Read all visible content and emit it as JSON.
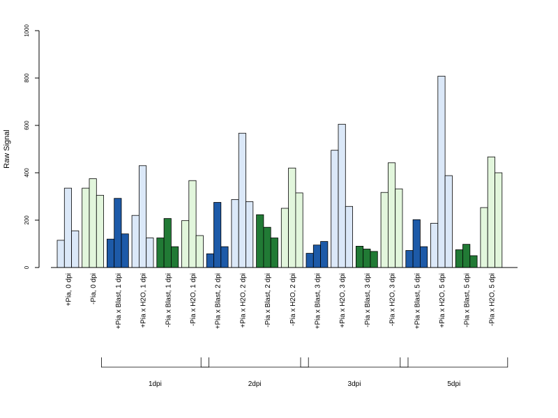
{
  "chart_data": {
    "type": "bar",
    "ylabel": "Raw Signal",
    "ylim": [
      0,
      1000
    ],
    "yticks": [
      0,
      200,
      400,
      600,
      800,
      1000
    ],
    "grid": false,
    "legend": "none",
    "bars_per_group": 3,
    "palette": {
      "light_blue": "#dbe8f8",
      "dark_blue": "#1d5aa8",
      "light_green": "#e2f6dc",
      "dark_green": "#217a35"
    },
    "categories": [
      "+Pia, 0 dpi",
      "-Pia, 0 dpi",
      "+Pia x Blast, 1 dpi",
      "+Pia x H2O, 1 dpi",
      "-Pia x Blast, 1 dpi",
      "-Pia x H2O, 1 dpi",
      "+Pia x Blast, 2 dpi",
      "+Pia x H2O, 2 dpi",
      "-Pia x Blast, 2 dpi",
      "-Pia x H2O, 2 dpi",
      "+Pia x Blast, 3 dpi",
      "+Pia x H2O, 3 dpi",
      "-Pia x Blast, 3 dpi",
      "-Pia x H2O, 3 dpi",
      "+Pia x Blast, 5 dpi",
      "+Pia x H2O, 5 dpi",
      "-Pia x Blast, 5 dpi",
      "-Pia x H2O, 5 dpi"
    ],
    "colors": [
      "light_blue",
      "light_green",
      "dark_blue",
      "light_blue",
      "dark_green",
      "light_green",
      "dark_blue",
      "light_blue",
      "dark_green",
      "light_green",
      "dark_blue",
      "light_blue",
      "dark_green",
      "light_green",
      "dark_blue",
      "light_blue",
      "dark_green",
      "light_green"
    ],
    "values": [
      [
        115,
        335,
        155
      ],
      [
        335,
        375,
        305
      ],
      [
        120,
        292,
        142
      ],
      [
        220,
        430,
        125
      ],
      [
        125,
        207,
        88
      ],
      [
        198,
        367,
        135
      ],
      [
        58,
        275,
        88
      ],
      [
        287,
        567,
        278
      ],
      [
        223,
        170,
        125
      ],
      [
        250,
        420,
        315
      ],
      [
        60,
        95,
        110
      ],
      [
        495,
        605,
        258
      ],
      [
        90,
        78,
        68
      ],
      [
        317,
        442,
        332
      ],
      [
        72,
        202,
        88
      ],
      [
        187,
        808,
        388
      ],
      [
        75,
        98,
        50
      ],
      [
        253,
        467,
        400
      ]
    ],
    "group_brackets": [
      {
        "label": "1dpi",
        "from": 2,
        "to": 5
      },
      {
        "label": "2dpi",
        "from": 6,
        "to": 9
      },
      {
        "label": "3dpi",
        "from": 10,
        "to": 13
      },
      {
        "label": "5dpi",
        "from": 14,
        "to": 17
      }
    ]
  }
}
